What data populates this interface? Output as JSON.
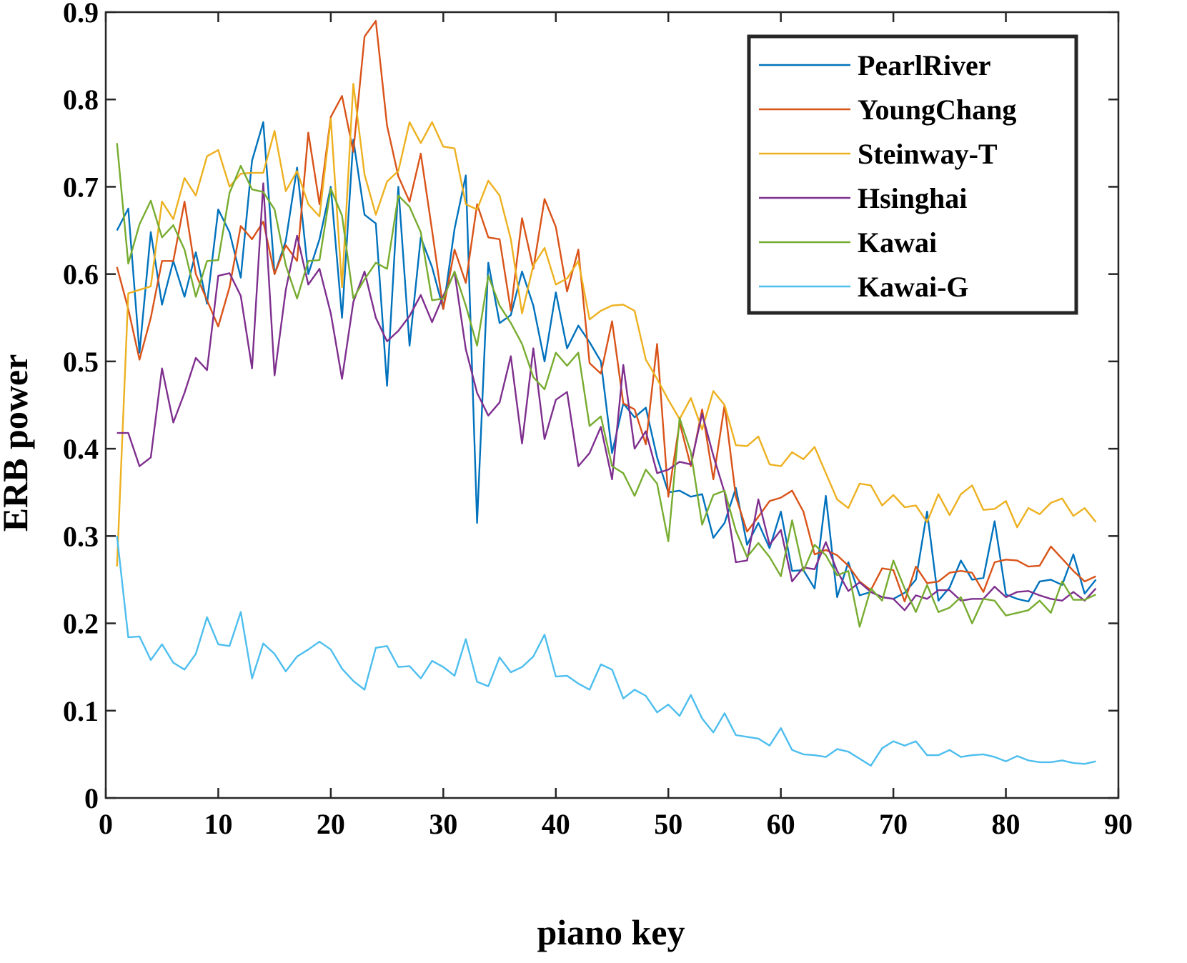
{
  "chart_data": {
    "type": "line",
    "title": "",
    "xlabel": "piano key",
    "ylabel": "ERB power",
    "xlim": [
      0,
      90
    ],
    "ylim": [
      0,
      0.9
    ],
    "xticks": [
      0,
      10,
      20,
      30,
      40,
      50,
      60,
      70,
      80,
      90
    ],
    "yticks": [
      0,
      0.1,
      0.2,
      0.3,
      0.4,
      0.5,
      0.6,
      0.7,
      0.8,
      0.9
    ],
    "legend_position": "top-right",
    "grid": false,
    "series": [
      {
        "name": "PearlRiver",
        "color": "#0072BD",
        "values": [
          0.65,
          0.675,
          0.51,
          0.648,
          0.565,
          0.615,
          0.574,
          0.625,
          0.566,
          0.674,
          0.648,
          0.596,
          0.73,
          0.774,
          0.6,
          0.638,
          0.722,
          0.6,
          0.64,
          0.7,
          0.55,
          0.754,
          0.668,
          0.658,
          0.472,
          0.7,
          0.518,
          0.642,
          0.608,
          0.56,
          0.652,
          0.713,
          0.315,
          0.613,
          0.544,
          0.553,
          0.603,
          0.564,
          0.5,
          0.579,
          0.515,
          0.541,
          0.522,
          0.5,
          0.395,
          0.452,
          0.436,
          0.447,
          0.39,
          0.35,
          0.352,
          0.345,
          0.348,
          0.298,
          0.315,
          0.355,
          0.29,
          0.315,
          0.286,
          0.328,
          0.26,
          0.261,
          0.24,
          0.346,
          0.23,
          0.27,
          0.232,
          0.236,
          0.23,
          0.228,
          0.235,
          0.25,
          0.328,
          0.226,
          0.241,
          0.272,
          0.25,
          0.252,
          0.317,
          0.233,
          0.228,
          0.225,
          0.248,
          0.25,
          0.244,
          0.279,
          0.234,
          0.25
        ]
      },
      {
        "name": "YoungChang",
        "color": "#D95319",
        "values": [
          0.608,
          0.56,
          0.502,
          0.55,
          0.615,
          0.615,
          0.683,
          0.6,
          0.57,
          0.54,
          0.585,
          0.655,
          0.64,
          0.66,
          0.6,
          0.633,
          0.615,
          0.762,
          0.68,
          0.78,
          0.804,
          0.74,
          0.872,
          0.89,
          0.77,
          0.712,
          0.683,
          0.738,
          0.65,
          0.56,
          0.628,
          0.59,
          0.68,
          0.642,
          0.64,
          0.558,
          0.664,
          0.606,
          0.686,
          0.654,
          0.58,
          0.628,
          0.498,
          0.486,
          0.546,
          0.452,
          0.445,
          0.405,
          0.52,
          0.345,
          0.43,
          0.38,
          0.445,
          0.365,
          0.45,
          0.345,
          0.305,
          0.322,
          0.34,
          0.344,
          0.352,
          0.328,
          0.279,
          0.284,
          0.278,
          0.266,
          0.248,
          0.238,
          0.263,
          0.261,
          0.225,
          0.265,
          0.246,
          0.248,
          0.258,
          0.26,
          0.258,
          0.236,
          0.27,
          0.273,
          0.272,
          0.265,
          0.266,
          0.288,
          0.274,
          0.26,
          0.248,
          0.254
        ]
      },
      {
        "name": "Steinway-T",
        "color": "#EDB120",
        "values": [
          0.265,
          0.578,
          0.582,
          0.586,
          0.683,
          0.663,
          0.71,
          0.69,
          0.735,
          0.742,
          0.7,
          0.715,
          0.716,
          0.716,
          0.764,
          0.695,
          0.718,
          0.68,
          0.666,
          0.778,
          0.585,
          0.818,
          0.714,
          0.668,
          0.706,
          0.718,
          0.774,
          0.75,
          0.774,
          0.746,
          0.744,
          0.68,
          0.674,
          0.707,
          0.69,
          0.64,
          0.555,
          0.61,
          0.63,
          0.588,
          0.595,
          0.615,
          0.548,
          0.558,
          0.564,
          0.565,
          0.558,
          0.502,
          0.48,
          0.456,
          0.434,
          0.458,
          0.422,
          0.466,
          0.45,
          0.404,
          0.403,
          0.414,
          0.382,
          0.38,
          0.396,
          0.388,
          0.402,
          0.372,
          0.342,
          0.332,
          0.36,
          0.358,
          0.335,
          0.347,
          0.333,
          0.335,
          0.316,
          0.348,
          0.324,
          0.348,
          0.358,
          0.33,
          0.331,
          0.34,
          0.31,
          0.332,
          0.325,
          0.338,
          0.343,
          0.323,
          0.332,
          0.316
        ]
      },
      {
        "name": "Hsinghai",
        "color": "#7E2F8E",
        "values": [
          0.418,
          0.418,
          0.38,
          0.39,
          0.492,
          0.43,
          0.464,
          0.504,
          0.49,
          0.598,
          0.601,
          0.575,
          0.492,
          0.704,
          0.484,
          0.582,
          0.644,
          0.588,
          0.606,
          0.555,
          0.48,
          0.568,
          0.603,
          0.55,
          0.523,
          0.535,
          0.552,
          0.576,
          0.545,
          0.575,
          0.602,
          0.514,
          0.464,
          0.438,
          0.453,
          0.506,
          0.406,
          0.515,
          0.411,
          0.456,
          0.465,
          0.38,
          0.395,
          0.425,
          0.365,
          0.496,
          0.4,
          0.42,
          0.372,
          0.376,
          0.385,
          0.382,
          0.44,
          0.392,
          0.35,
          0.27,
          0.272,
          0.342,
          0.29,
          0.307,
          0.248,
          0.264,
          0.262,
          0.293,
          0.26,
          0.237,
          0.247,
          0.236,
          0.23,
          0.228,
          0.215,
          0.232,
          0.228,
          0.238,
          0.238,
          0.226,
          0.228,
          0.228,
          0.242,
          0.23,
          0.236,
          0.237,
          0.232,
          0.228,
          0.226,
          0.236,
          0.226,
          0.24
        ]
      },
      {
        "name": "Kawai",
        "color": "#77AC30",
        "values": [
          0.75,
          0.612,
          0.657,
          0.684,
          0.642,
          0.656,
          0.628,
          0.574,
          0.615,
          0.616,
          0.693,
          0.724,
          0.697,
          0.694,
          0.674,
          0.61,
          0.572,
          0.615,
          0.616,
          0.698,
          0.667,
          0.572,
          0.594,
          0.613,
          0.606,
          0.69,
          0.677,
          0.648,
          0.57,
          0.572,
          0.603,
          0.564,
          0.518,
          0.598,
          0.564,
          0.544,
          0.52,
          0.482,
          0.468,
          0.51,
          0.495,
          0.51,
          0.426,
          0.437,
          0.38,
          0.372,
          0.346,
          0.376,
          0.36,
          0.294,
          0.435,
          0.396,
          0.313,
          0.347,
          0.352,
          0.306,
          0.276,
          0.292,
          0.276,
          0.254,
          0.318,
          0.26,
          0.29,
          0.278,
          0.255,
          0.26,
          0.196,
          0.24,
          0.226,
          0.272,
          0.24,
          0.213,
          0.244,
          0.213,
          0.218,
          0.23,
          0.2,
          0.228,
          0.226,
          0.209,
          0.212,
          0.215,
          0.226,
          0.212,
          0.248,
          0.227,
          0.227,
          0.233
        ]
      },
      {
        "name": "Kawai-G",
        "color": "#4DBEEE",
        "values": [
          0.3,
          0.184,
          0.185,
          0.158,
          0.176,
          0.155,
          0.147,
          0.165,
          0.207,
          0.176,
          0.174,
          0.213,
          0.137,
          0.177,
          0.165,
          0.145,
          0.162,
          0.17,
          0.179,
          0.17,
          0.148,
          0.134,
          0.124,
          0.172,
          0.174,
          0.15,
          0.151,
          0.137,
          0.157,
          0.15,
          0.14,
          0.182,
          0.133,
          0.128,
          0.161,
          0.144,
          0.15,
          0.162,
          0.187,
          0.139,
          0.14,
          0.131,
          0.124,
          0.153,
          0.147,
          0.114,
          0.124,
          0.117,
          0.098,
          0.107,
          0.094,
          0.118,
          0.091,
          0.075,
          0.097,
          0.072,
          0.07,
          0.068,
          0.06,
          0.08,
          0.055,
          0.05,
          0.049,
          0.047,
          0.056,
          0.053,
          0.045,
          0.037,
          0.057,
          0.065,
          0.06,
          0.065,
          0.049,
          0.049,
          0.055,
          0.047,
          0.049,
          0.05,
          0.047,
          0.042,
          0.048,
          0.043,
          0.041,
          0.041,
          0.043,
          0.04,
          0.039,
          0.042
        ]
      }
    ]
  }
}
